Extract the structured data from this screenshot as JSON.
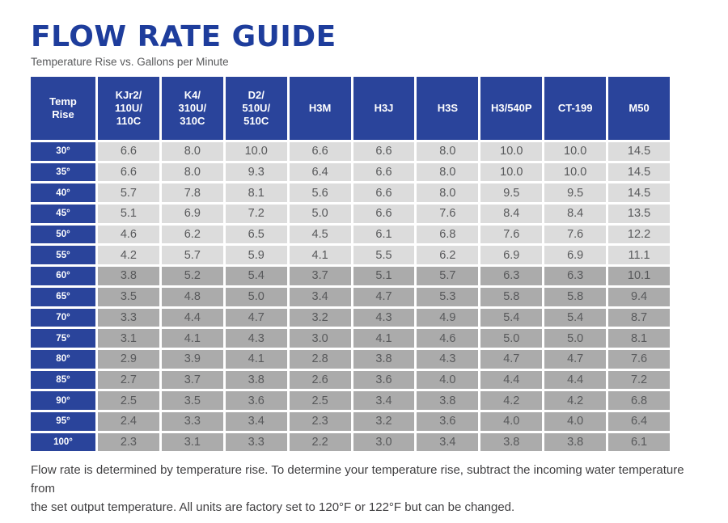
{
  "header": {
    "title": "FLOW RATE GUIDE",
    "subtitle": "Temperature Rise vs. Gallons per Minute"
  },
  "colors": {
    "title_blue": "#1e3d9c",
    "table_blue": "#2a449b",
    "row_light_gray": "#dcdcdc",
    "row_dark_gray": "#ababab",
    "data_text_gray": "#58595b"
  },
  "chart_data": {
    "type": "table",
    "title": "FLOW RATE GUIDE",
    "subtitle": "Temperature Rise vs. Gallons per Minute",
    "units": "Gallons per Minute",
    "columns": [
      "Temp Rise",
      "KJr2/110U/110C",
      "K4/310U/310C",
      "D2/510U/510C",
      "H3M",
      "H3J",
      "H3S",
      "H3/540P",
      "CT-199",
      "M50"
    ],
    "column_header_lines": [
      [
        "Temp",
        "Rise"
      ],
      [
        "KJr2/",
        "110U/",
        "110C"
      ],
      [
        "K4/",
        "310U/",
        "310C"
      ],
      [
        "D2/",
        "510U/",
        "510C"
      ],
      [
        "H3M"
      ],
      [
        "H3J"
      ],
      [
        "H3S"
      ],
      [
        "H3/540P"
      ],
      [
        "CT-199"
      ],
      [
        "M50"
      ]
    ],
    "rows": [
      {
        "temp_rise": "30°",
        "values": [
          "6.6",
          "8.0",
          "10.0",
          "6.6",
          "6.6",
          "8.0",
          "10.0",
          "10.0",
          "14.5"
        ],
        "shade": "light"
      },
      {
        "temp_rise": "35°",
        "values": [
          "6.6",
          "8.0",
          "9.3",
          "6.4",
          "6.6",
          "8.0",
          "10.0",
          "10.0",
          "14.5"
        ],
        "shade": "light"
      },
      {
        "temp_rise": "40°",
        "values": [
          "5.7",
          "7.8",
          "8.1",
          "5.6",
          "6.6",
          "8.0",
          "9.5",
          "9.5",
          "14.5"
        ],
        "shade": "light"
      },
      {
        "temp_rise": "45°",
        "values": [
          "5.1",
          "6.9",
          "7.2",
          "5.0",
          "6.6",
          "7.6",
          "8.4",
          "8.4",
          "13.5"
        ],
        "shade": "light"
      },
      {
        "temp_rise": "50°",
        "values": [
          "4.6",
          "6.2",
          "6.5",
          "4.5",
          "6.1",
          "6.8",
          "7.6",
          "7.6",
          "12.2"
        ],
        "shade": "light"
      },
      {
        "temp_rise": "55°",
        "values": [
          "4.2",
          "5.7",
          "5.9",
          "4.1",
          "5.5",
          "6.2",
          "6.9",
          "6.9",
          "11.1"
        ],
        "shade": "light"
      },
      {
        "temp_rise": "60°",
        "values": [
          "3.8",
          "5.2",
          "5.4",
          "3.7",
          "5.1",
          "5.7",
          "6.3",
          "6.3",
          "10.1"
        ],
        "shade": "dark"
      },
      {
        "temp_rise": "65°",
        "values": [
          "3.5",
          "4.8",
          "5.0",
          "3.4",
          "4.7",
          "5.3",
          "5.8",
          "5.8",
          "9.4"
        ],
        "shade": "dark"
      },
      {
        "temp_rise": "70°",
        "values": [
          "3.3",
          "4.4",
          "4.7",
          "3.2",
          "4.3",
          "4.9",
          "5.4",
          "5.4",
          "8.7"
        ],
        "shade": "dark"
      },
      {
        "temp_rise": "75°",
        "values": [
          "3.1",
          "4.1",
          "4.3",
          "3.0",
          "4.1",
          "4.6",
          "5.0",
          "5.0",
          "8.1"
        ],
        "shade": "dark"
      },
      {
        "temp_rise": "80°",
        "values": [
          "2.9",
          "3.9",
          "4.1",
          "2.8",
          "3.8",
          "4.3",
          "4.7",
          "4.7",
          "7.6"
        ],
        "shade": "dark"
      },
      {
        "temp_rise": "85°",
        "values": [
          "2.7",
          "3.7",
          "3.8",
          "2.6",
          "3.6",
          "4.0",
          "4.4",
          "4.4",
          "7.2"
        ],
        "shade": "dark"
      },
      {
        "temp_rise": "90°",
        "values": [
          "2.5",
          "3.5",
          "3.6",
          "2.5",
          "3.4",
          "3.8",
          "4.2",
          "4.2",
          "6.8"
        ],
        "shade": "dark"
      },
      {
        "temp_rise": "95°",
        "values": [
          "2.4",
          "3.3",
          "3.4",
          "2.3",
          "3.2",
          "3.6",
          "4.0",
          "4.0",
          "6.4"
        ],
        "shade": "dark"
      },
      {
        "temp_rise": "100°",
        "values": [
          "2.3",
          "3.1",
          "3.3",
          "2.2",
          "3.0",
          "3.4",
          "3.8",
          "3.8",
          "6.1"
        ],
        "shade": "dark"
      }
    ]
  },
  "footer": {
    "line1": "Flow rate is determined by temperature rise. To determine your temperature rise, subtract the incoming water temperature from",
    "line2": "the set output temperature. All units are factory set to 120°F or 122°F but can be changed."
  }
}
